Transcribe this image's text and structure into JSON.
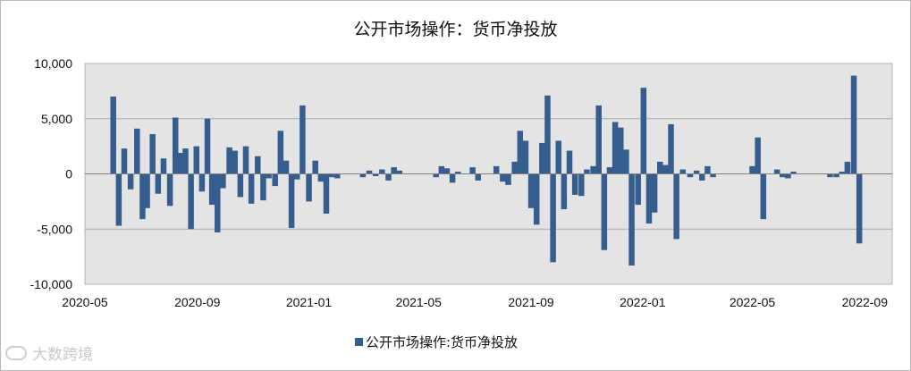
{
  "chart_data": {
    "type": "bar",
    "title": "公开市场操作：货币净投放",
    "series": [
      {
        "name": "公开市场操作:货币净投放",
        "color": "#355e8e"
      }
    ],
    "ylim": [
      -10000,
      10000
    ],
    "yticks": [
      "10,000",
      "5,000",
      "0",
      "-5,000",
      "-10,000"
    ],
    "ytick_values": [
      10000,
      5000,
      0,
      -5000,
      -10000
    ],
    "xlim": [
      "2020-05-01",
      "2022-10-01"
    ],
    "xticks": [
      "2020-05",
      "2020-09",
      "2021-01",
      "2021-05",
      "2021-09",
      "2022-01",
      "2022-05",
      "2022-09"
    ],
    "xtick_values": [
      "2020-05-01",
      "2020-09-01",
      "2021-01-01",
      "2021-05-01",
      "2021-09-01",
      "2022-01-01",
      "2022-05-01",
      "2022-09-01"
    ],
    "grid": true,
    "legend_position": "bottom",
    "points": [
      [
        "2020-06-01",
        7000
      ],
      [
        "2020-06-07",
        -4700
      ],
      [
        "2020-06-13",
        2300
      ],
      [
        "2020-06-20",
        -1400
      ],
      [
        "2020-06-27",
        4100
      ],
      [
        "2020-07-03",
        -4100
      ],
      [
        "2020-07-08",
        -3100
      ],
      [
        "2020-07-14",
        3600
      ],
      [
        "2020-07-20",
        -1800
      ],
      [
        "2020-07-26",
        1400
      ],
      [
        "2020-08-02",
        -2900
      ],
      [
        "2020-08-08",
        5100
      ],
      [
        "2020-08-13",
        1900
      ],
      [
        "2020-08-19",
        2300
      ],
      [
        "2020-08-25",
        -5000
      ],
      [
        "2020-08-31",
        2500
      ],
      [
        "2020-09-06",
        -1600
      ],
      [
        "2020-09-12",
        5000
      ],
      [
        "2020-09-17",
        -2800
      ],
      [
        "2020-09-23",
        -5300
      ],
      [
        "2020-09-29",
        -1300
      ],
      [
        "2020-10-06",
        2400
      ],
      [
        "2020-10-12",
        2100
      ],
      [
        "2020-10-18",
        -2100
      ],
      [
        "2020-10-24",
        2500
      ],
      [
        "2020-10-30",
        -2700
      ],
      [
        "2020-11-06",
        1600
      ],
      [
        "2020-11-12",
        -2400
      ],
      [
        "2020-11-18",
        -400
      ],
      [
        "2020-11-25",
        -1100
      ],
      [
        "2020-12-01",
        3900
      ],
      [
        "2020-12-07",
        1200
      ],
      [
        "2020-12-13",
        -4900
      ],
      [
        "2020-12-19",
        -500
      ],
      [
        "2020-12-25",
        6200
      ],
      [
        "2021-01-01",
        -2500
      ],
      [
        "2021-01-08",
        1200
      ],
      [
        "2021-01-14",
        -700
      ],
      [
        "2021-01-20",
        -3600
      ],
      [
        "2021-01-26",
        -300
      ],
      [
        "2021-02-01",
        -400
      ],
      [
        "2021-03-01",
        -300
      ],
      [
        "2021-03-08",
        300
      ],
      [
        "2021-03-15",
        -200
      ],
      [
        "2021-03-22",
        400
      ],
      [
        "2021-03-29",
        -600
      ],
      [
        "2021-04-04",
        600
      ],
      [
        "2021-04-10",
        300
      ],
      [
        "2021-05-20",
        -300
      ],
      [
        "2021-05-26",
        700
      ],
      [
        "2021-06-01",
        500
      ],
      [
        "2021-06-07",
        -800
      ],
      [
        "2021-06-13",
        200
      ],
      [
        "2021-06-29",
        600
      ],
      [
        "2021-07-05",
        -600
      ],
      [
        "2021-07-25",
        700
      ],
      [
        "2021-08-01",
        -700
      ],
      [
        "2021-08-07",
        -1000
      ],
      [
        "2021-08-14",
        1100
      ],
      [
        "2021-08-20",
        3900
      ],
      [
        "2021-08-26",
        3000
      ],
      [
        "2021-09-01",
        -3100
      ],
      [
        "2021-09-07",
        -4600
      ],
      [
        "2021-09-13",
        2800
      ],
      [
        "2021-09-19",
        7100
      ],
      [
        "2021-09-25",
        -8000
      ],
      [
        "2021-10-01",
        3000
      ],
      [
        "2021-10-07",
        -3200
      ],
      [
        "2021-10-13",
        2100
      ],
      [
        "2021-10-19",
        -1900
      ],
      [
        "2021-10-26",
        -2000
      ],
      [
        "2021-11-01",
        400
      ],
      [
        "2021-11-08",
        700
      ],
      [
        "2021-11-14",
        6200
      ],
      [
        "2021-11-20",
        -6900
      ],
      [
        "2021-11-26",
        600
      ],
      [
        "2021-12-02",
        4700
      ],
      [
        "2021-12-08",
        4200
      ],
      [
        "2021-12-14",
        2200
      ],
      [
        "2021-12-20",
        -8300
      ],
      [
        "2021-12-27",
        -2800
      ],
      [
        "2022-01-02",
        7800
      ],
      [
        "2022-01-08",
        -4500
      ],
      [
        "2022-01-14",
        -3500
      ],
      [
        "2022-01-20",
        1100
      ],
      [
        "2022-01-26",
        800
      ],
      [
        "2022-02-01",
        4500
      ],
      [
        "2022-02-07",
        -5900
      ],
      [
        "2022-02-14",
        400
      ],
      [
        "2022-02-22",
        -300
      ],
      [
        "2022-03-01",
        300
      ],
      [
        "2022-03-07",
        -600
      ],
      [
        "2022-03-13",
        700
      ],
      [
        "2022-03-19",
        -300
      ],
      [
        "2022-05-01",
        700
      ],
      [
        "2022-05-07",
        3300
      ],
      [
        "2022-05-13",
        -4100
      ],
      [
        "2022-05-28",
        400
      ],
      [
        "2022-06-03",
        -300
      ],
      [
        "2022-06-09",
        -400
      ],
      [
        "2022-06-15",
        200
      ],
      [
        "2022-07-25",
        -300
      ],
      [
        "2022-08-01",
        -300
      ],
      [
        "2022-08-07",
        200
      ],
      [
        "2022-08-13",
        1100
      ],
      [
        "2022-08-20",
        8900
      ],
      [
        "2022-08-26",
        -6300
      ]
    ]
  },
  "legend": {
    "label": "公开市场操作:货币净投放"
  },
  "watermark": {
    "text": "大数跨境"
  }
}
